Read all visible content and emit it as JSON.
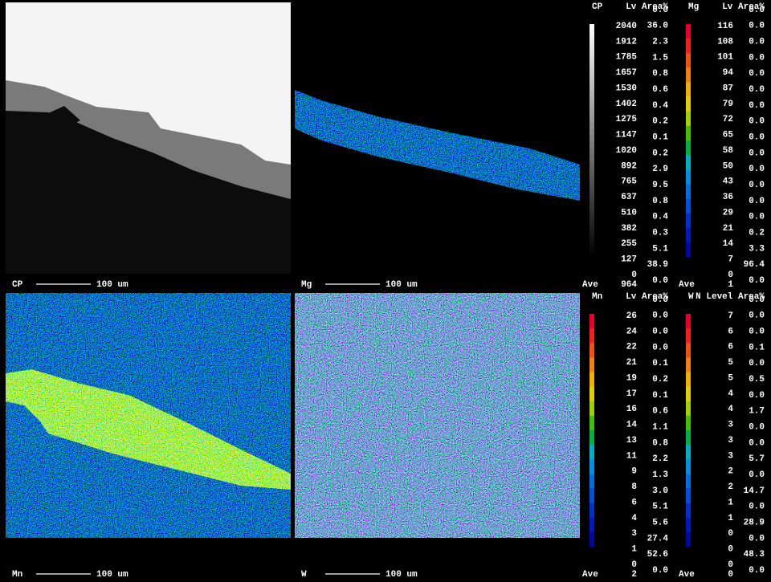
{
  "panels": [
    {
      "label": "CP",
      "scale": "100 um"
    },
    {
      "label": "Mg",
      "scale": "100 um"
    },
    {
      "label": "Mn",
      "scale": "100 um"
    },
    {
      "label": "W",
      "scale": "100 um"
    }
  ],
  "legends": [
    {
      "element": "CP",
      "header": "Lv Area%",
      "levels": [
        2040,
        1912,
        1785,
        1657,
        1530,
        1402,
        1275,
        1147,
        1020,
        892,
        765,
        637,
        510,
        382,
        255,
        127,
        0
      ],
      "areas": [
        "0.0",
        "36.0",
        "2.3",
        "1.5",
        "0.8",
        "0.6",
        "0.4",
        "0.2",
        "0.1",
        "0.2",
        "2.9",
        "9.5",
        "0.8",
        "0.4",
        "0.3",
        "5.1",
        "38.9",
        "0.0"
      ],
      "ave_label": "Ave",
      "ave": 964
    },
    {
      "element": "Mg",
      "header": "Lv Area%",
      "levels": [
        116,
        108,
        101,
        94,
        87,
        79,
        72,
        65,
        58,
        50,
        43,
        36,
        29,
        21,
        14,
        7,
        0
      ],
      "areas": [
        "0.0",
        "0.0",
        "0.0",
        "0.0",
        "0.0",
        "0.0",
        "0.0",
        "0.0",
        "0.0",
        "0.0",
        "0.0",
        "0.0",
        "0.0",
        "0.0",
        "0.2",
        "3.3",
        "96.4",
        "0.0"
      ],
      "ave_label": "Ave",
      "ave": 1
    },
    {
      "element": "Mn",
      "header": "Lv Area%",
      "levels": [
        26,
        24,
        22,
        21,
        19,
        17,
        16,
        14,
        13,
        11,
        9,
        8,
        6,
        4,
        3,
        1,
        0
      ],
      "areas": [
        "0.0",
        "0.0",
        "0.0",
        "0.0",
        "0.1",
        "0.2",
        "0.1",
        "0.6",
        "1.1",
        "0.8",
        "2.2",
        "1.3",
        "3.0",
        "5.1",
        "5.6",
        "27.4",
        "52.6",
        "0.0"
      ],
      "ave_label": "Ave",
      "ave": 2
    },
    {
      "element": "W",
      "header": "N Level Area%",
      "levels": [
        7,
        6,
        6,
        5,
        5,
        4,
        4,
        3,
        3,
        3,
        2,
        2,
        1,
        1,
        0,
        0,
        0
      ],
      "areas": [
        "0.0",
        "0.0",
        "0.0",
        "0.1",
        "0.0",
        "0.5",
        "0.0",
        "1.7",
        "0.0",
        "0.0",
        "5.7",
        "0.0",
        "14.7",
        "0.0",
        "28.9",
        "0.0",
        "48.3",
        "0.0"
      ],
      "ave_label": "Ave",
      "ave": 0
    }
  ]
}
